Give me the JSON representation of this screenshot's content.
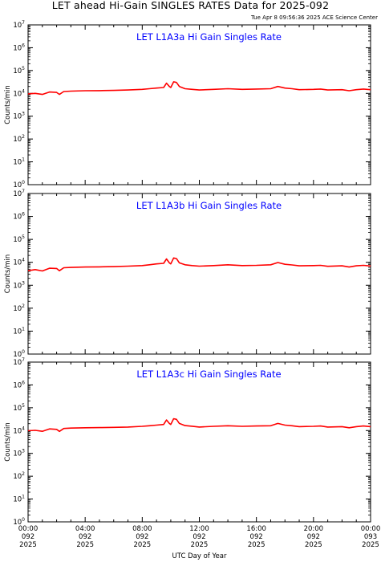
{
  "header": {
    "title": "LET ahead Hi-Gain SINGLES RATES Data for 2025-092",
    "timestamp": "Tue Apr  8 09:56:36 2025 ACE Science Center"
  },
  "colors": {
    "series": "#ff0000",
    "panel_title": "#0000ff",
    "axes": "#000000",
    "background": "#ffffff"
  },
  "chart_data": [
    {
      "type": "line",
      "title": "LET L1A3a Hi Gain Singles Rate",
      "ylabel": "Counts/min",
      "yscale": "log",
      "ylim": [
        1,
        10000000
      ],
      "yticks": [
        "10^0",
        "10^1",
        "10^2",
        "10^3",
        "10^4",
        "10^5",
        "10^6",
        "10^7"
      ],
      "xlim": [
        0,
        24
      ],
      "grid": false,
      "series": [
        {
          "x": [
            0,
            0.5,
            1,
            1.5,
            2,
            2.2,
            2.5,
            3,
            4,
            5,
            6,
            7,
            8,
            8.5,
            9,
            9.5,
            9.7,
            9.9,
            10,
            10.2,
            10.4,
            10.6,
            11,
            11.5,
            12,
            13,
            14,
            15,
            16,
            17,
            17.5,
            18,
            18.5,
            19,
            20,
            20.5,
            21,
            22,
            22.5,
            23,
            23.5,
            24
          ],
          "y": [
            9500,
            10000,
            9000,
            11500,
            11000,
            9000,
            12000,
            12500,
            13000,
            13200,
            13500,
            14000,
            15000,
            16000,
            17000,
            18000,
            28000,
            20000,
            18000,
            32000,
            30000,
            20000,
            16000,
            15000,
            14000,
            15000,
            16000,
            15000,
            15500,
            16000,
            20000,
            17000,
            16000,
            14500,
            15000,
            15500,
            14000,
            14500,
            13000,
            14500,
            15500,
            14500
          ]
        }
      ]
    },
    {
      "type": "line",
      "title": "LET L1A3b Hi Gain Singles Rate",
      "ylabel": "Counts/min",
      "yscale": "log",
      "ylim": [
        1,
        10000000
      ],
      "yticks": [
        "10^0",
        "10^1",
        "10^2",
        "10^3",
        "10^4",
        "10^5",
        "10^6",
        "10^7"
      ],
      "xlim": [
        0,
        24
      ],
      "grid": false,
      "series": [
        {
          "x": [
            0,
            0.5,
            1,
            1.5,
            2,
            2.2,
            2.5,
            3,
            4,
            5,
            6,
            7,
            8,
            8.5,
            9,
            9.5,
            9.7,
            9.9,
            10,
            10.2,
            10.4,
            10.6,
            11,
            11.5,
            12,
            13,
            14,
            15,
            16,
            17,
            17.5,
            18,
            18.5,
            19,
            20,
            20.5,
            21,
            22,
            22.5,
            23,
            23.5,
            24
          ],
          "y": [
            4300,
            4800,
            4200,
            5500,
            5400,
            4300,
            5800,
            6000,
            6200,
            6300,
            6500,
            6800,
            7200,
            7800,
            8500,
            9000,
            14000,
            9500,
            8500,
            15500,
            14500,
            9500,
            7800,
            7200,
            6800,
            7200,
            7800,
            7200,
            7400,
            7800,
            9800,
            8200,
            7700,
            7000,
            7200,
            7400,
            6700,
            7000,
            6200,
            7000,
            7400,
            6900
          ]
        }
      ]
    },
    {
      "type": "line",
      "title": "LET L1A3c Hi Gain Singles Rate",
      "ylabel": "Counts/min",
      "yscale": "log",
      "ylim": [
        1,
        10000000
      ],
      "yticks": [
        "10^0",
        "10^1",
        "10^2",
        "10^3",
        "10^4",
        "10^5",
        "10^6",
        "10^7"
      ],
      "xlim": [
        0,
        24
      ],
      "xlabel": "UTC Day of Year",
      "xticks": [
        {
          "x": 0,
          "time": "00:00",
          "doy": "092",
          "year": "2025"
        },
        {
          "x": 4,
          "time": "04:00",
          "doy": "092",
          "year": "2025"
        },
        {
          "x": 8,
          "time": "08:00",
          "doy": "092",
          "year": "2025"
        },
        {
          "x": 12,
          "time": "12:00",
          "doy": "092",
          "year": "2025"
        },
        {
          "x": 16,
          "time": "16:00",
          "doy": "092",
          "year": "2025"
        },
        {
          "x": 20,
          "time": "20:00",
          "doy": "092",
          "year": "2025"
        },
        {
          "x": 24,
          "time": "00:00",
          "doy": "093",
          "year": "2025"
        }
      ],
      "grid": false,
      "series": [
        {
          "x": [
            0,
            0.5,
            1,
            1.5,
            2,
            2.2,
            2.5,
            3,
            4,
            5,
            6,
            7,
            8,
            8.5,
            9,
            9.5,
            9.7,
            9.9,
            10,
            10.2,
            10.4,
            10.6,
            11,
            11.5,
            12,
            13,
            14,
            15,
            16,
            17,
            17.5,
            18,
            18.5,
            19,
            20,
            20.5,
            21,
            22,
            22.5,
            23,
            23.5,
            24
          ],
          "y": [
            9800,
            10200,
            9300,
            11800,
            11300,
            9200,
            12300,
            12800,
            13300,
            13500,
            13800,
            14300,
            15300,
            16300,
            17300,
            18500,
            29000,
            20500,
            18500,
            33000,
            31000,
            20500,
            16500,
            15500,
            14300,
            15300,
            16300,
            15300,
            15800,
            16300,
            20500,
            17300,
            16300,
            14800,
            15300,
            15800,
            14300,
            14800,
            13300,
            14800,
            15800,
            14800
          ]
        }
      ]
    }
  ]
}
